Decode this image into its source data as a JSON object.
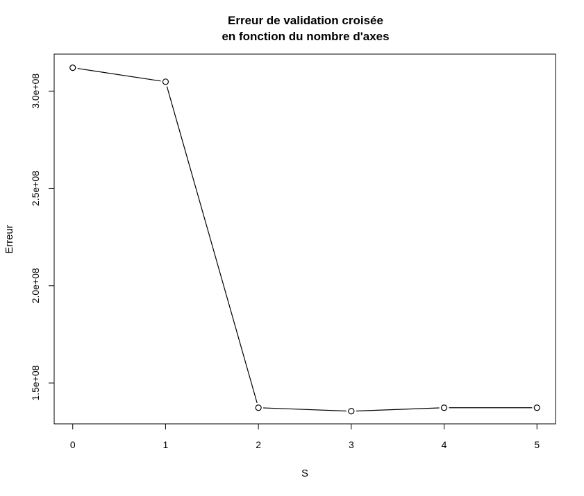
{
  "chart_data": {
    "type": "line",
    "title": [
      "Erreur de validation croisée",
      "en fonction du nombre d'axes"
    ],
    "xlabel": "S",
    "ylabel": "Erreur",
    "x": [
      0,
      1,
      2,
      3,
      4,
      5
    ],
    "series": [
      {
        "values": [
          312000000,
          304800000,
          137300000,
          135500000,
          137300000,
          137300000
        ]
      }
    ],
    "xticks": [
      0,
      1,
      2,
      3,
      4,
      5
    ],
    "xtick_labels": [
      "0",
      "1",
      "2",
      "3",
      "4",
      "5"
    ],
    "yticks": [
      150000000,
      200000000,
      250000000,
      300000000
    ],
    "ytick_labels": [
      "1.5e+08",
      "2.0e+08",
      "2.5e+08",
      "3.0e+08"
    ],
    "xlim": [
      -0.2,
      5.2
    ],
    "ylim": [
      129000000,
      319000000
    ],
    "grid": false,
    "marker": "open-circle",
    "colors": {
      "line": "#000000",
      "marker_fill": "#ffffff",
      "axis": "#000000"
    }
  }
}
